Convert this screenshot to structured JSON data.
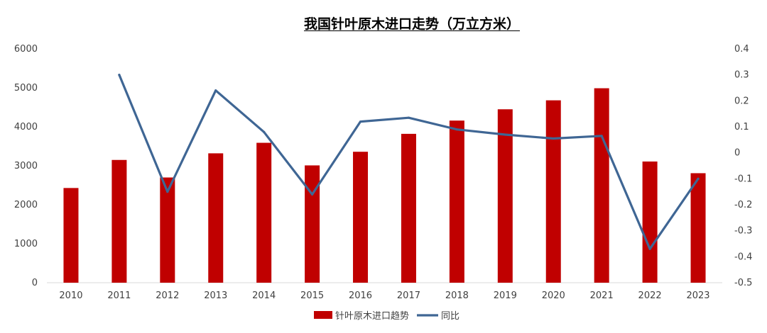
{
  "chart_data": {
    "type": "bar",
    "title": "我国针叶原木进口走势（万立方米）",
    "categories": [
      "2010",
      "2011",
      "2012",
      "2013",
      "2014",
      "2015",
      "2016",
      "2017",
      "2018",
      "2019",
      "2020",
      "2021",
      "2022",
      "2023"
    ],
    "series": [
      {
        "name": "针叶原木进口趋势",
        "type": "bar",
        "axis": "left",
        "color": "#C00000",
        "values": [
          2430,
          3150,
          2700,
          3320,
          3590,
          3010,
          3360,
          3820,
          4160,
          4450,
          4680,
          4990,
          3110,
          2810
        ]
      },
      {
        "name": "同比",
        "type": "line",
        "axis": "right",
        "color": "#3F6694",
        "values": [
          null,
          0.3,
          -0.15,
          0.24,
          0.08,
          -0.16,
          0.12,
          0.135,
          0.09,
          0.07,
          0.055,
          0.065,
          -0.37,
          -0.1
        ]
      }
    ],
    "ylim_left": [
      0,
      6000
    ],
    "yticks_left": [
      "0",
      "1000",
      "2000",
      "3000",
      "4000",
      "5000",
      "6000"
    ],
    "ylim_right": [
      -0.5,
      0.4
    ],
    "yticks_right": [
      "-0.5",
      "-0.4",
      "-0.3",
      "-0.2",
      "-0.1",
      "0",
      "0.1",
      "0.2",
      "0.3",
      "0.4"
    ],
    "grid": false,
    "legend_position": "bottom"
  }
}
